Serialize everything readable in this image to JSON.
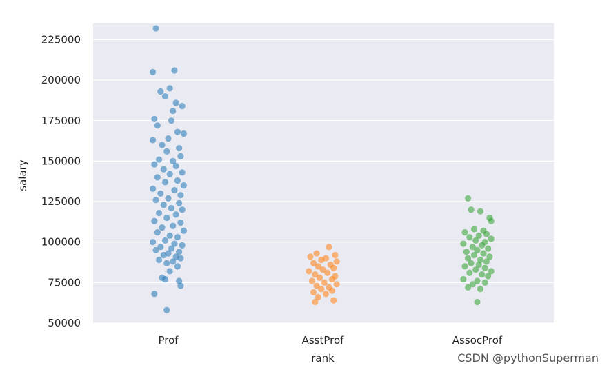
{
  "chart_data": {
    "type": "scatter",
    "subtype": "strip",
    "xlabel": "rank",
    "ylabel": "salary",
    "ylim": [
      50000,
      235000
    ],
    "yticks": [
      50000,
      75000,
      100000,
      125000,
      150000,
      175000,
      200000,
      225000
    ],
    "ytick_labels": [
      "50000",
      "75000",
      "100000",
      "125000",
      "150000",
      "175000",
      "200000",
      "225000"
    ],
    "grid": true,
    "categories": [
      "Prof",
      "AsstProf",
      "AssocProf"
    ],
    "series": [
      {
        "category": "Prof",
        "color": "#1f77b4",
        "points": [
          [
            -0.08,
            232000
          ],
          [
            -0.1,
            205000
          ],
          [
            0.04,
            206000
          ],
          [
            -0.05,
            193000
          ],
          [
            0.01,
            195000
          ],
          [
            -0.02,
            190000
          ],
          [
            0.05,
            186000
          ],
          [
            0.09,
            184000
          ],
          [
            0.03,
            181000
          ],
          [
            -0.09,
            176000
          ],
          [
            0.02,
            175000
          ],
          [
            -0.07,
            172000
          ],
          [
            0.06,
            168000
          ],
          [
            0.1,
            167000
          ],
          [
            -0.1,
            163000
          ],
          [
            0.0,
            164000
          ],
          [
            -0.04,
            160000
          ],
          [
            0.07,
            158000
          ],
          [
            -0.01,
            156000
          ],
          [
            0.08,
            153000
          ],
          [
            -0.06,
            151000
          ],
          [
            0.03,
            150000
          ],
          [
            -0.09,
            148000
          ],
          [
            0.05,
            147000
          ],
          [
            -0.03,
            145000
          ],
          [
            0.09,
            143000
          ],
          [
            0.01,
            142000
          ],
          [
            -0.07,
            140000
          ],
          [
            0.06,
            138000
          ],
          [
            -0.02,
            137000
          ],
          [
            0.1,
            135000
          ],
          [
            -0.1,
            133000
          ],
          [
            0.04,
            132000
          ],
          [
            -0.05,
            130000
          ],
          [
            0.08,
            129000
          ],
          [
            0.0,
            127000
          ],
          [
            -0.08,
            126000
          ],
          [
            0.07,
            124000
          ],
          [
            -0.03,
            123000
          ],
          [
            0.02,
            121000
          ],
          [
            0.09,
            120000
          ],
          [
            -0.06,
            118000
          ],
          [
            0.05,
            117000
          ],
          [
            -0.01,
            115000
          ],
          [
            -0.09,
            113000
          ],
          [
            0.08,
            112000
          ],
          [
            0.03,
            110000
          ],
          [
            -0.04,
            109000
          ],
          [
            0.1,
            107000
          ],
          [
            -0.07,
            106000
          ],
          [
            0.01,
            104000
          ],
          [
            0.06,
            103000
          ],
          [
            -0.02,
            101000
          ],
          [
            -0.1,
            100000
          ],
          [
            0.04,
            99000
          ],
          [
            0.09,
            98000
          ],
          [
            -0.05,
            97000
          ],
          [
            0.02,
            96000
          ],
          [
            -0.08,
            95000
          ],
          [
            0.07,
            94000
          ],
          [
            0.0,
            93000
          ],
          [
            -0.03,
            92000
          ],
          [
            0.05,
            91000
          ],
          [
            0.08,
            90000
          ],
          [
            -0.06,
            89000
          ],
          [
            0.03,
            88000
          ],
          [
            -0.01,
            87000
          ],
          [
            0.06,
            85000
          ],
          [
            0.01,
            82000
          ],
          [
            -0.04,
            78000
          ],
          [
            -0.02,
            77000
          ],
          [
            0.07,
            76000
          ],
          [
            0.08,
            73000
          ],
          [
            -0.09,
            68000
          ],
          [
            -0.01,
            58000
          ]
        ]
      },
      {
        "category": "AsstProf",
        "color": "#ff7f0e",
        "points": [
          [
            0.04,
            97000
          ],
          [
            -0.04,
            93000
          ],
          [
            0.08,
            92000
          ],
          [
            -0.08,
            91000
          ],
          [
            0.02,
            90000
          ],
          [
            -0.01,
            89000
          ],
          [
            0.09,
            88000
          ],
          [
            -0.06,
            87000
          ],
          [
            0.05,
            86000
          ],
          [
            -0.03,
            85000
          ],
          [
            0.07,
            84000
          ],
          [
            0.0,
            83000
          ],
          [
            -0.09,
            82000
          ],
          [
            0.03,
            81000
          ],
          [
            -0.05,
            80000
          ],
          [
            0.08,
            79000
          ],
          [
            -0.02,
            78000
          ],
          [
            0.06,
            77000
          ],
          [
            -0.07,
            76000
          ],
          [
            0.01,
            75000
          ],
          [
            0.09,
            74000
          ],
          [
            -0.04,
            73000
          ],
          [
            0.04,
            72000
          ],
          [
            -0.01,
            71000
          ],
          [
            0.06,
            70000
          ],
          [
            -0.06,
            69000
          ],
          [
            0.02,
            68000
          ],
          [
            -0.03,
            66000
          ],
          [
            0.07,
            64000
          ],
          [
            -0.05,
            63000
          ]
        ]
      },
      {
        "category": "AssocProf",
        "color": "#2ca02c",
        "points": [
          [
            -0.06,
            127000
          ],
          [
            -0.04,
            120000
          ],
          [
            0.02,
            119000
          ],
          [
            0.08,
            115000
          ],
          [
            0.09,
            113000
          ],
          [
            -0.02,
            108000
          ],
          [
            0.04,
            107000
          ],
          [
            -0.08,
            106000
          ],
          [
            0.06,
            105000
          ],
          [
            0.01,
            104000
          ],
          [
            -0.05,
            103000
          ],
          [
            0.09,
            102000
          ],
          [
            -0.01,
            101000
          ],
          [
            0.05,
            100000
          ],
          [
            -0.09,
            99000
          ],
          [
            0.03,
            98000
          ],
          [
            -0.03,
            97000
          ],
          [
            0.07,
            96000
          ],
          [
            0.0,
            95000
          ],
          [
            -0.07,
            94000
          ],
          [
            0.04,
            93000
          ],
          [
            -0.02,
            92000
          ],
          [
            0.08,
            91000
          ],
          [
            -0.06,
            90000
          ],
          [
            0.02,
            89000
          ],
          [
            0.06,
            88000
          ],
          [
            -0.04,
            87000
          ],
          [
            0.01,
            86000
          ],
          [
            -0.08,
            85000
          ],
          [
            0.05,
            84000
          ],
          [
            -0.01,
            83000
          ],
          [
            0.09,
            82000
          ],
          [
            -0.05,
            81000
          ],
          [
            0.03,
            80000
          ],
          [
            0.07,
            79000
          ],
          [
            -0.09,
            77000
          ],
          [
            0.0,
            76000
          ],
          [
            0.05,
            75000
          ],
          [
            -0.03,
            74000
          ],
          [
            -0.06,
            72000
          ],
          [
            0.02,
            71000
          ],
          [
            0.0,
            63000
          ]
        ]
      }
    ]
  },
  "watermark": "CSDN @pythonSuperman"
}
